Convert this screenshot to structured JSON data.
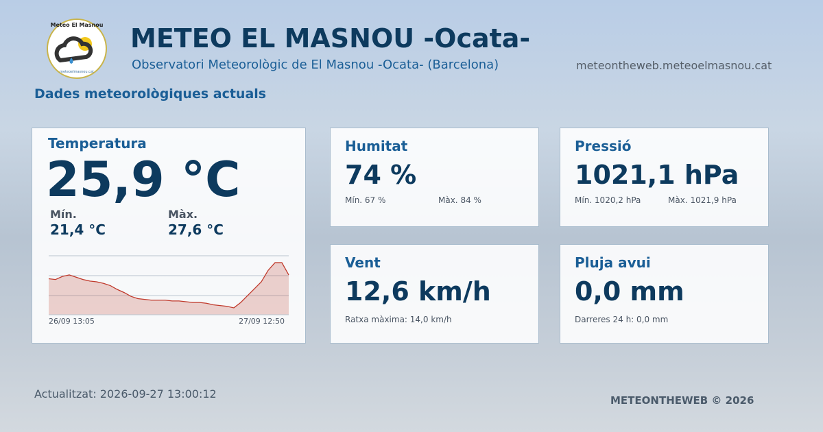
{
  "header": {
    "title": "METEO EL MASNOU -Ocata-",
    "subtitle": "Observatori Meteorològic de El Masnou -Ocata- (Barcelona)",
    "website": "meteontheweb.meteoelmasnou.cat",
    "section": "Dades meteorològiques actuals"
  },
  "logo": {
    "top": "Meteo El Masnou",
    "bottom": "meteoelmasnou.cat"
  },
  "temperature": {
    "label": "Temperatura",
    "value": "25,9 °C",
    "min_label": "Mín.",
    "min": "21,4 °C",
    "max_label": "Màx.",
    "max": "27,6 °C"
  },
  "chart_data": {
    "type": "line",
    "color": "#c0392b",
    "values": [
      25.4,
      25.3,
      25.7,
      25.9,
      25.6,
      25.3,
      25.1,
      25.0,
      24.8,
      24.5,
      24.0,
      23.6,
      23.1,
      22.8,
      22.7,
      22.6,
      22.6,
      22.6,
      22.5,
      22.5,
      22.4,
      22.3,
      22.3,
      22.2,
      22.0,
      21.9,
      21.8,
      21.6,
      22.3,
      23.2,
      24.1,
      25.0,
      26.5,
      27.5,
      27.5,
      25.9
    ],
    "ylim": [
      20.7,
      28.4
    ],
    "yticks": [
      23.2,
      25.8
    ],
    "start_label": "26/09 13:05",
    "end_label": "27/09 12:50"
  },
  "cards": [
    {
      "label": "Humitat",
      "value": "74 %",
      "details": [
        "Mín. 67 %",
        "Màx. 84 %"
      ]
    },
    {
      "label": "Pressió",
      "value": "1021,1 hPa",
      "details": [
        "Mín. 1020,2 hPa",
        "Màx. 1021,9 hPa"
      ]
    },
    {
      "label": "Vent",
      "value": "12,6 km/h",
      "details": [
        "Ratxa màxima: 14,0 km/h"
      ]
    },
    {
      "label": "Pluja avui",
      "value": "0,0 mm",
      "details": [
        "Darreres 24 h: 0,0 mm"
      ]
    }
  ],
  "footer": {
    "updated": "Actualitzat: 2026-09-27 13:00:12",
    "brand": "METEONTHEWEB © 2026"
  }
}
